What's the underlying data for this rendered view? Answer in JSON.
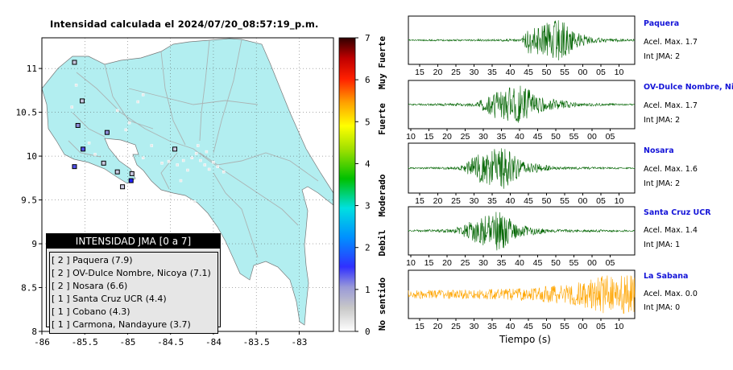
{
  "map": {
    "title": "Intensidad calculada el 2024/07/20_08:57:19_p.m.",
    "x_ticks": [
      "-86",
      "-85.5",
      "-85",
      "-84.5",
      "-84",
      "-83.5",
      "-83"
    ],
    "y_ticks": [
      "11",
      "10.5",
      "10",
      "9.5",
      "9",
      "8.5",
      "8"
    ],
    "land_color": "#b2eef0",
    "water_color": "#ffffff"
  },
  "colorbar": {
    "ticks": [
      "7",
      "6",
      "5",
      "4",
      "3",
      "2",
      "1",
      "0"
    ],
    "categories": [
      "Muy Fuerte",
      "Fuerte",
      "Moderado",
      "Debil",
      "No sentido"
    ]
  },
  "legend": {
    "title": "INTENSIDAD JMA [0 a 7]",
    "items": [
      "[ 2 ]  Paquera (7.9)",
      "[ 2 ]  OV-Dulce Nombre, Nicoya (7.1)",
      "[ 2 ]  Nosara (6.6)",
      "[ 1 ]  Santa Cruz UCR (4.4)",
      "[ 1 ]  Cobano (4.3)",
      "[ 1 ]  Carmona, Nandayure (3.7)"
    ]
  },
  "waveforms": {
    "xlabel": "Tiempo (s)",
    "stations": [
      {
        "name": "Paquera",
        "accel": "Acel. Max. 1.7",
        "jma": "Int JMA: 2",
        "color": "#006400",
        "ticks": [
          "15",
          "20",
          "25",
          "30",
          "35",
          "40",
          "45",
          "50",
          "55",
          "00",
          "05",
          "10"
        ]
      },
      {
        "name": "OV-Dulce Nombre, Nico",
        "accel": "Acel. Max. 1.7",
        "jma": "Int JMA: 2",
        "color": "#006400",
        "ticks": [
          "10",
          "15",
          "20",
          "25",
          "30",
          "35",
          "40",
          "45",
          "50",
          "55",
          "00",
          "05"
        ]
      },
      {
        "name": "Nosara",
        "accel": "Acel. Max. 1.6",
        "jma": "Int JMA: 2",
        "color": "#006400",
        "ticks": [
          "15",
          "20",
          "25",
          "30",
          "35",
          "40",
          "45",
          "50",
          "55",
          "00",
          "05",
          "10"
        ]
      },
      {
        "name": "Santa Cruz UCR",
        "accel": "Acel. Max. 1.4",
        "jma": "Int JMA: 1",
        "color": "#006400",
        "ticks": [
          "10",
          "15",
          "20",
          "25",
          "30",
          "35",
          "40",
          "45",
          "50",
          "55",
          "00",
          "05"
        ]
      },
      {
        "name": "La Sabana",
        "accel": "Acel. Max. 0.0",
        "jma": "Int JMA: 0",
        "color": "#ffa500",
        "ticks": [
          "15",
          "20",
          "25",
          "30",
          "35",
          "40",
          "45",
          "50",
          "55",
          "00",
          "05",
          "10"
        ]
      }
    ]
  },
  "chart_data": {
    "type": "scatter",
    "title": "Intensidad calculada el 2024/07/20_08:57:19_p.m.",
    "xlim": [
      -86,
      -82.6
    ],
    "ylim": [
      8,
      11.35
    ],
    "colorbar_range": [
      0,
      7
    ],
    "stations": [
      {
        "x": -85.62,
        "y": 11.07,
        "v": 0.8
      },
      {
        "x": -85.6,
        "y": 10.81,
        "v": 0.6
      },
      {
        "x": -85.53,
        "y": 10.63,
        "v": 0.7
      },
      {
        "x": -85.65,
        "y": 10.56,
        "v": 0.6
      },
      {
        "x": -85.58,
        "y": 10.35,
        "v": 1.2
      },
      {
        "x": -85.45,
        "y": 10.15,
        "v": 0.6
      },
      {
        "x": -85.52,
        "y": 10.08,
        "v": 1.7
      },
      {
        "x": -85.62,
        "y": 9.88,
        "v": 1.5
      },
      {
        "x": -85.38,
        "y": 10.02,
        "v": 0.6
      },
      {
        "x": -85.28,
        "y": 9.92,
        "v": 0.9
      },
      {
        "x": -85.24,
        "y": 10.27,
        "v": 1.0
      },
      {
        "x": -85.12,
        "y": 10.52,
        "v": 0.6
      },
      {
        "x": -85.02,
        "y": 10.3,
        "v": 0.6
      },
      {
        "x": -85.12,
        "y": 9.82,
        "v": 0.7
      },
      {
        "x": -84.95,
        "y": 9.8,
        "v": 0.8
      },
      {
        "x": -84.96,
        "y": 9.72,
        "v": 1.9
      },
      {
        "x": -85.06,
        "y": 9.65,
        "v": 0.9
      },
      {
        "x": -84.88,
        "y": 10.62,
        "v": 0.6
      },
      {
        "x": -84.82,
        "y": 10.7,
        "v": 0.6
      },
      {
        "x": -84.98,
        "y": 10.38,
        "v": 0.5
      },
      {
        "x": -84.82,
        "y": 9.98,
        "v": 0.5
      },
      {
        "x": -84.72,
        "y": 10.12,
        "v": 0.6
      },
      {
        "x": -84.6,
        "y": 9.92,
        "v": 0.6
      },
      {
        "x": -84.52,
        "y": 9.94,
        "v": 0.5
      },
      {
        "x": -84.45,
        "y": 10.08,
        "v": 0.7
      },
      {
        "x": -84.42,
        "y": 9.9,
        "v": 0.5
      },
      {
        "x": -84.35,
        "y": 9.95,
        "v": 0.6
      },
      {
        "x": -84.3,
        "y": 9.84,
        "v": 0.5
      },
      {
        "x": -84.25,
        "y": 9.98,
        "v": 0.6
      },
      {
        "x": -84.2,
        "y": 10.03,
        "v": 0.5
      },
      {
        "x": -84.15,
        "y": 9.95,
        "v": 0.6
      },
      {
        "x": -84.1,
        "y": 9.9,
        "v": 0.5
      },
      {
        "x": -84.08,
        "y": 10.05,
        "v": 0.6
      },
      {
        "x": -84.05,
        "y": 9.85,
        "v": 0.5
      },
      {
        "x": -84.0,
        "y": 9.93,
        "v": 0.6
      },
      {
        "x": -83.95,
        "y": 9.88,
        "v": 0.5
      },
      {
        "x": -84.5,
        "y": 9.55,
        "v": 0.6
      },
      {
        "x": -84.22,
        "y": 9.48,
        "v": 0.6
      },
      {
        "x": -84.38,
        "y": 9.72,
        "v": 0.5
      },
      {
        "x": -83.88,
        "y": 9.82,
        "v": 0.5
      },
      {
        "x": -84.18,
        "y": 10.12,
        "v": 0.5
      }
    ]
  }
}
